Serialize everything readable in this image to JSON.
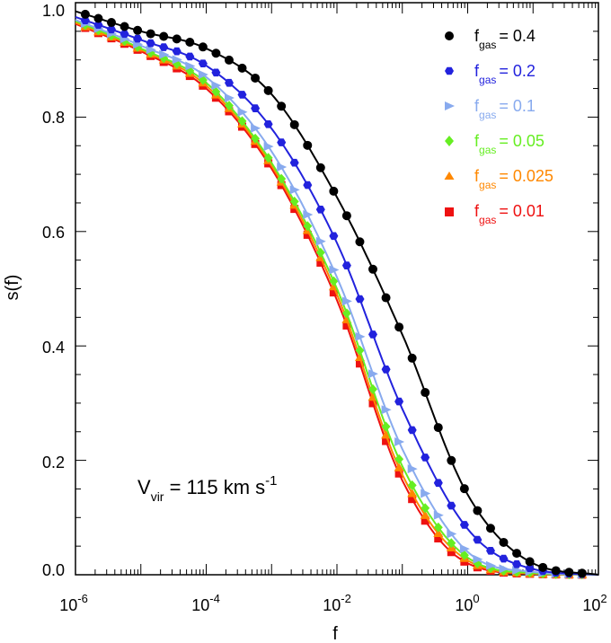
{
  "chart_data": {
    "type": "line",
    "title": "",
    "xlabel": "f",
    "ylabel": "s(f)",
    "xscale": "log",
    "xlim": [
      1e-06,
      100
    ],
    "ylim": [
      0.0,
      1.0
    ],
    "x_ticks": [
      {
        "base": "10",
        "exp": "-6"
      },
      {
        "base": "10",
        "exp": "-4"
      },
      {
        "base": "10",
        "exp": "-2"
      },
      {
        "base": "10",
        "exp": "0"
      },
      {
        "base": "10",
        "exp": "2"
      }
    ],
    "y_ticks": [
      "0.0",
      "0.2",
      "0.4",
      "0.6",
      "0.8",
      "1.0"
    ],
    "annotation": {
      "main": "V",
      "sub": "vir",
      "rest": " = 115 km s",
      "sup": "-1"
    },
    "legend_position": "top-right",
    "series": [
      {
        "name": "f_gas = 0.4",
        "legend_main": "f",
        "legend_sub": "gas",
        "legend_value": "= 0.4",
        "color": "#000000",
        "marker": "circle",
        "logf": [
          -6,
          -5,
          -4,
          -3,
          -2,
          -1,
          0,
          1,
          2
        ],
        "s": [
          0.985,
          0.95,
          0.92,
          0.84,
          0.66,
          0.42,
          0.14,
          0.02,
          0.0
        ]
      },
      {
        "name": "f_gas = 0.2",
        "legend_main": "f",
        "legend_sub": "gas",
        "legend_value": "= 0.2",
        "color": "#2222dd",
        "marker": "hexagon",
        "logf": [
          -6,
          -5,
          -4,
          -3,
          -2,
          -1,
          0,
          1,
          2
        ],
        "s": [
          0.975,
          0.935,
          0.89,
          0.78,
          0.58,
          0.29,
          0.08,
          0.01,
          0.0
        ]
      },
      {
        "name": "f_gas = 0.1",
        "legend_main": "f",
        "legend_sub": "gas",
        "legend_value": "= 0.1",
        "color": "#88aaee",
        "marker": "triangle-right",
        "logf": [
          -6,
          -5,
          -4,
          -3,
          -2,
          -1,
          0,
          1,
          2
        ],
        "s": [
          0.97,
          0.925,
          0.87,
          0.74,
          0.52,
          0.22,
          0.04,
          0.005,
          0.0
        ]
      },
      {
        "name": "f_gas = 0.05",
        "legend_main": "f",
        "legend_sub": "gas",
        "legend_value": "= 0.05",
        "color": "#66ee22",
        "marker": "diamond",
        "logf": [
          -6,
          -5,
          -4,
          -3,
          -2,
          -1,
          0,
          1,
          2
        ],
        "s": [
          0.968,
          0.92,
          0.86,
          0.72,
          0.5,
          0.19,
          0.03,
          0.003,
          0.0
        ]
      },
      {
        "name": "f_gas = 0.025",
        "legend_main": "f",
        "legend_sub": "gas",
        "legend_value": "= 0.025",
        "color": "#ff8800",
        "marker": "triangle-up",
        "logf": [
          -6,
          -5,
          -4,
          -3,
          -2,
          -1,
          0,
          1,
          2
        ],
        "s": [
          0.965,
          0.918,
          0.855,
          0.715,
          0.49,
          0.175,
          0.025,
          0.002,
          0.0
        ]
      },
      {
        "name": "f_gas = 0.01",
        "legend_main": "f",
        "legend_sub": "gas",
        "legend_value": "= 0.01",
        "color": "#ee1111",
        "marker": "square",
        "logf": [
          -6,
          -5,
          -4,
          -3,
          -2,
          -1,
          0,
          1,
          2
        ],
        "s": [
          0.963,
          0.915,
          0.85,
          0.71,
          0.48,
          0.165,
          0.02,
          0.0015,
          0.0
        ]
      }
    ]
  }
}
